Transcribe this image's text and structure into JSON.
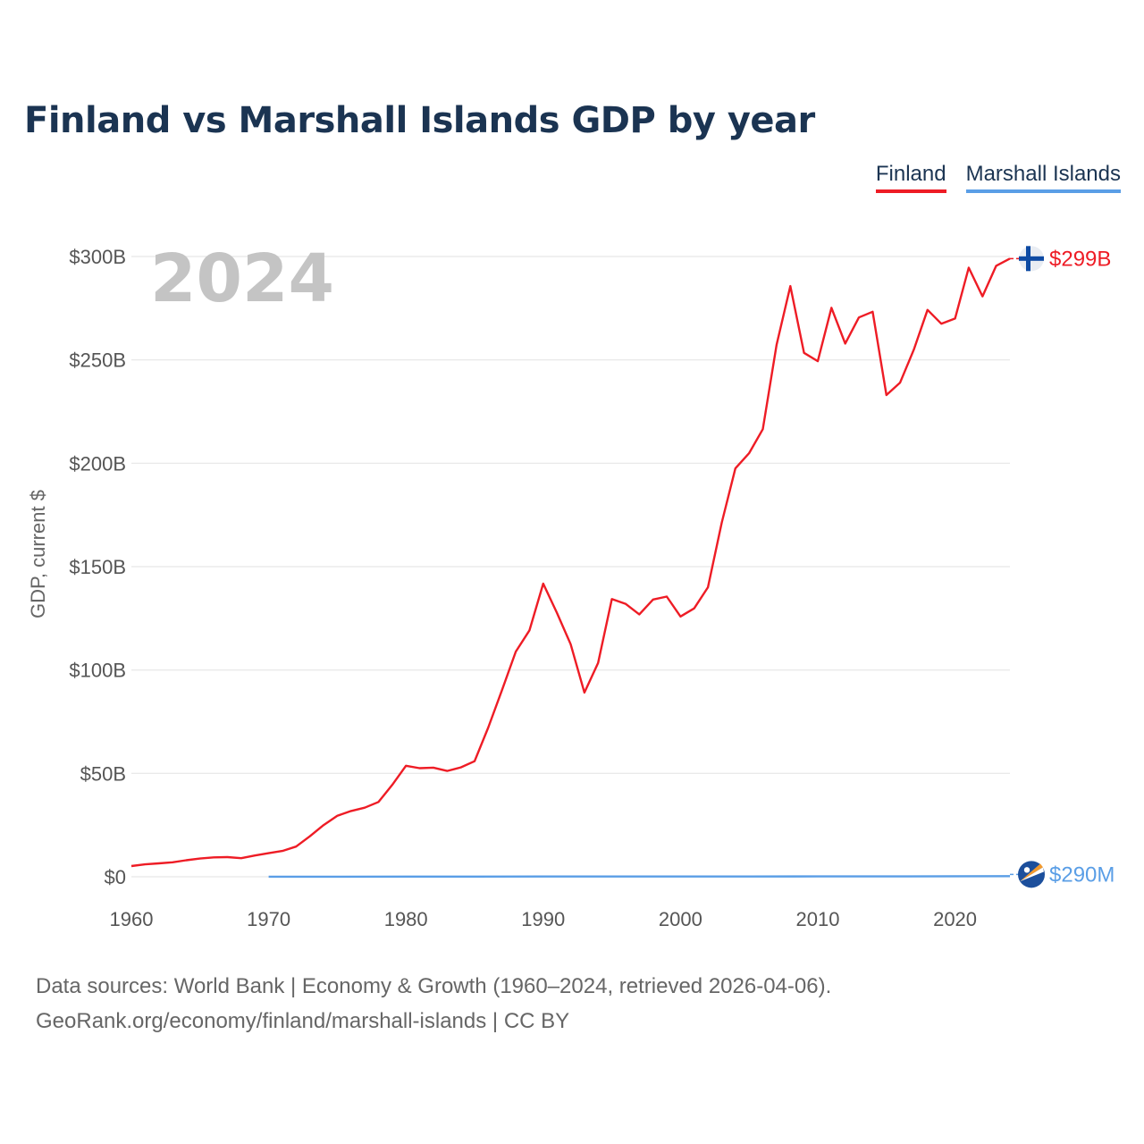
{
  "title": "Finland vs Marshall Islands GDP by year",
  "legend": {
    "finland": "Finland",
    "marshall_islands": "Marshall Islands"
  },
  "year_overlay": "2024",
  "source_line1": "Data sources: World Bank | Economy & Growth (1960–2024, retrieved 2026-04-06).",
  "source_line2": "GeoRank.org/economy/finland/marshall-islands | CC BY",
  "colors": {
    "finland": "#ee1c25",
    "marshall_islands": "#5a9ee6",
    "grid": "#e6e6e6",
    "title": "#1b3452"
  },
  "chart_data": {
    "type": "line",
    "title": "Finland vs Marshall Islands GDP by year",
    "xlabel": "",
    "ylabel": "GDP, current $",
    "xlim": [
      1960,
      2024
    ],
    "ylim": [
      0,
      300
    ],
    "unit": "billion USD",
    "y_ticks": [
      {
        "value": 0,
        "label": "$0"
      },
      {
        "value": 50,
        "label": "$50B"
      },
      {
        "value": 100,
        "label": "$100B"
      },
      {
        "value": 150,
        "label": "$150B"
      },
      {
        "value": 200,
        "label": "$200B"
      },
      {
        "value": 250,
        "label": "$250B"
      },
      {
        "value": 300,
        "label": "$300B"
      }
    ],
    "x_ticks": [
      1960,
      1970,
      1980,
      1990,
      2000,
      2010,
      2020
    ],
    "series": [
      {
        "name": "Finland",
        "end_label": "$299B",
        "x": [
          1960,
          1961,
          1962,
          1963,
          1964,
          1965,
          1966,
          1967,
          1968,
          1969,
          1970,
          1971,
          1972,
          1973,
          1974,
          1975,
          1976,
          1977,
          1978,
          1979,
          1980,
          1981,
          1982,
          1983,
          1984,
          1985,
          1986,
          1987,
          1988,
          1989,
          1990,
          1991,
          1992,
          1993,
          1994,
          1995,
          1996,
          1997,
          1998,
          1999,
          2000,
          2001,
          2002,
          2003,
          2004,
          2005,
          2006,
          2007,
          2008,
          2009,
          2010,
          2011,
          2012,
          2013,
          2014,
          2015,
          2016,
          2017,
          2018,
          2019,
          2020,
          2021,
          2022,
          2023,
          2024
        ],
        "values": [
          5.2,
          6.0,
          6.5,
          7.0,
          8.0,
          8.8,
          9.4,
          9.5,
          9.0,
          10.3,
          11.4,
          12.5,
          14.6,
          19.6,
          25.0,
          29.5,
          31.8,
          33.4,
          36.2,
          44.4,
          53.7,
          52.5,
          52.8,
          51.2,
          52.9,
          55.9,
          72.2,
          90.3,
          108.9,
          119.2,
          141.8,
          127.7,
          112.5,
          89.1,
          103.4,
          134.3,
          132.0,
          126.9,
          134.1,
          135.5,
          125.9,
          129.8,
          140.0,
          171.2,
          197.5,
          204.9,
          216.5,
          257.3,
          285.7,
          253.4,
          249.4,
          275.2,
          257.9,
          270.5,
          273.3,
          233.0,
          239.0,
          255.0,
          274.2,
          267.5,
          270.0,
          294.6,
          280.7,
          295.5,
          299.0
        ]
      },
      {
        "name": "Marshall Islands",
        "end_label": "$290M",
        "x": [
          1970,
          1975,
          1980,
          1985,
          1990,
          1995,
          2000,
          2005,
          2010,
          2015,
          2020,
          2024
        ],
        "values": [
          0.03,
          0.05,
          0.08,
          0.1,
          0.12,
          0.13,
          0.11,
          0.13,
          0.16,
          0.18,
          0.24,
          0.29
        ]
      }
    ]
  }
}
